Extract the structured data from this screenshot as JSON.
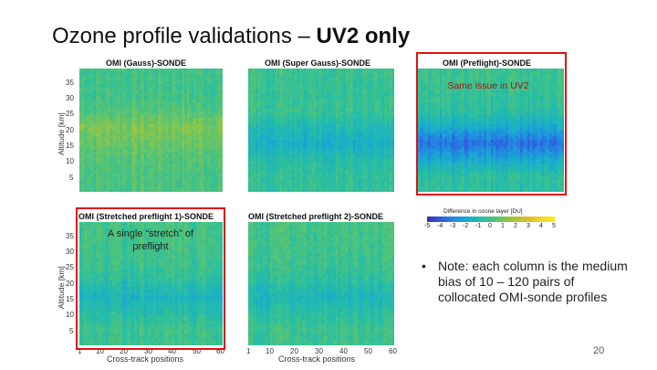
{
  "slide": {
    "title_main": "Ozone profile validations – ",
    "title_bold": "UV2 only",
    "page_number": "20"
  },
  "annotations": {
    "preflight": "Same issue in UV2",
    "stretched": "A single “stretch” of preflight"
  },
  "note": {
    "bullet": "•",
    "text": "Note: each column is the medium bias of 10 – 120 pairs of collocated OMI-sonde profiles"
  },
  "colorbar": {
    "title": "Difference in ozone layer [DU]",
    "ticks": [
      "-5",
      "-4",
      "-3",
      "-2",
      "-1",
      "0",
      "1",
      "2",
      "3",
      "4",
      "5"
    ],
    "colors": [
      "#3d2aa8",
      "#2f5fe0",
      "#1f8fe0",
      "#19b0c8",
      "#2bbf9e",
      "#5cc46f",
      "#a0c53c",
      "#d9bd2a",
      "#f6d02b",
      "#f9ee17"
    ]
  },
  "chart_data": [
    {
      "type": "heatmap",
      "title": "OMI (Gauss)-SONDE",
      "ylabel": "Altitude [km]",
      "xlabel": "",
      "x_ticks": [],
      "y_ticks": [
        "35",
        "30",
        "25",
        "20",
        "15",
        "10",
        "5"
      ],
      "x_range": [
        1,
        60
      ],
      "y_range": [
        0,
        38
      ],
      "zlim": [
        -5,
        5
      ],
      "altitude_profile": {
        "altitudes_km": [
          35,
          30,
          25,
          20,
          15,
          10,
          5
        ],
        "values_du": [
          0.0,
          0.0,
          0.3,
          1.2,
          0.8,
          0.4,
          0.2
        ]
      }
    },
    {
      "type": "heatmap",
      "title": "OMI (Super Gauss)-SONDE",
      "ylabel": "",
      "xlabel": "",
      "x_ticks": [],
      "y_ticks": [],
      "x_range": [
        1,
        60
      ],
      "y_range": [
        0,
        38
      ],
      "zlim": [
        -5,
        5
      ],
      "altitude_profile": {
        "altitudes_km": [
          35,
          30,
          25,
          20,
          15,
          10,
          5
        ],
        "values_du": [
          -0.2,
          -0.3,
          -0.2,
          -1.0,
          -1.6,
          -0.8,
          -0.4
        ]
      }
    },
    {
      "type": "heatmap",
      "title": "OMI (Preflight)-SONDE",
      "ylabel": "",
      "xlabel": "",
      "x_ticks": [],
      "y_ticks": [],
      "x_range": [
        1,
        60
      ],
      "y_range": [
        0,
        38
      ],
      "zlim": [
        -5,
        5
      ],
      "altitude_profile": {
        "altitudes_km": [
          35,
          30,
          25,
          20,
          15,
          10,
          5
        ],
        "values_du": [
          -0.2,
          -0.4,
          -0.6,
          -1.8,
          -3.6,
          -2.0,
          -0.6
        ]
      }
    },
    {
      "type": "heatmap",
      "title": "OMI (Stretched preflight 1)-SONDE",
      "ylabel": "Altitude [km]",
      "xlabel": "Cross-track positions",
      "x_ticks": [
        "1",
        "10",
        "20",
        "30",
        "40",
        "50",
        "60"
      ],
      "y_ticks": [
        "35",
        "30",
        "25",
        "20",
        "15",
        "10",
        "5"
      ],
      "x_range": [
        1,
        60
      ],
      "y_range": [
        0,
        38
      ],
      "zlim": [
        -5,
        5
      ],
      "altitude_profile": {
        "altitudes_km": [
          35,
          30,
          25,
          20,
          15,
          10,
          5
        ],
        "values_du": [
          0.0,
          -0.1,
          -0.2,
          -0.6,
          -1.4,
          -0.8,
          -0.2
        ]
      }
    },
    {
      "type": "heatmap",
      "title": "OMI (Stretched preflight 2)-SONDE",
      "ylabel": "",
      "xlabel": "Cross-track positions",
      "x_ticks": [
        "1",
        "10",
        "20",
        "30",
        "40",
        "50",
        "60"
      ],
      "y_ticks": [],
      "x_range": [
        1,
        60
      ],
      "y_range": [
        0,
        38
      ],
      "zlim": [
        -5,
        5
      ],
      "altitude_profile": {
        "altitudes_km": [
          35,
          30,
          25,
          20,
          15,
          10,
          5
        ],
        "values_du": [
          0.0,
          -0.1,
          -0.2,
          -0.6,
          -1.3,
          -0.7,
          -0.2
        ]
      }
    }
  ]
}
